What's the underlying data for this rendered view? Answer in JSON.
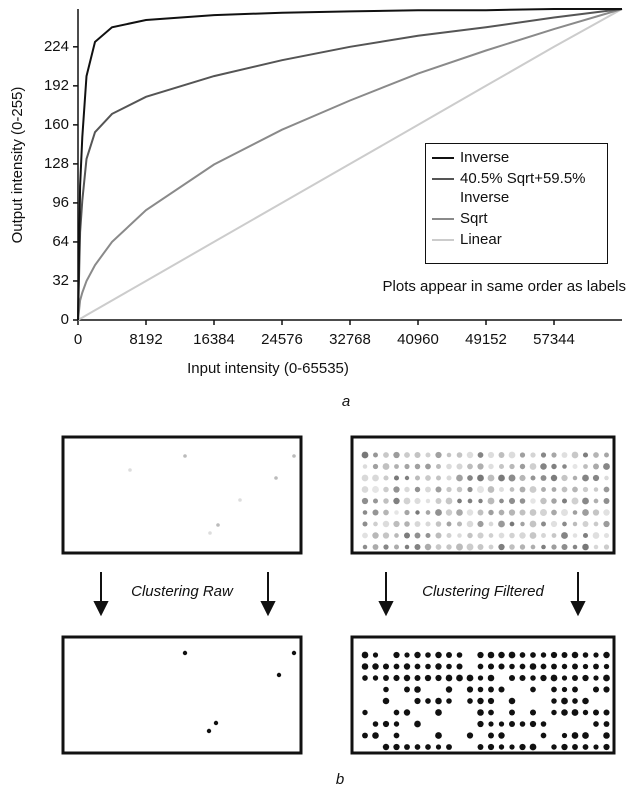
{
  "chart_data": {
    "type": "line",
    "x_label": "Input intensity (0-65535)",
    "y_label": "Output intensity (0-255)",
    "x": [
      0,
      256,
      512,
      1024,
      2048,
      4096,
      8192,
      16384,
      24576,
      32768,
      40960,
      49152,
      57344,
      65535
    ],
    "series": [
      {
        "name": "Inverse",
        "color": "#111111",
        "values": [
          0,
          110,
          150,
          200,
          228,
          240,
          246,
          250,
          252,
          253,
          254,
          254,
          255,
          255
        ]
      },
      {
        "name": "40.5% Sqrt+59.5% Inverse",
        "color": "#555555",
        "values": [
          0,
          72,
          98,
          132,
          154,
          169,
          183,
          200,
          213,
          224,
          233,
          240,
          248,
          255
        ]
      },
      {
        "name": "Sqrt",
        "color": "#8a8a8a",
        "values": [
          0,
          16,
          22.5,
          32,
          45,
          64,
          90,
          127.5,
          156,
          180,
          202,
          221,
          238.5,
          255
        ]
      },
      {
        "name": "Linear",
        "color": "#cccccc",
        "values": [
          0,
          1,
          2,
          4,
          8,
          16,
          32,
          64,
          96,
          128,
          160,
          192,
          224,
          255
        ]
      }
    ],
    "xlim": [
      0,
      65535
    ],
    "ylim": [
      0,
      255
    ],
    "xticks": [
      0,
      8192,
      16384,
      24576,
      32768,
      40960,
      49152,
      57344
    ],
    "yticks": [
      0,
      32,
      64,
      96,
      128,
      160,
      192,
      224
    ],
    "annotation": "Plots appear in same order as labels"
  },
  "panel_labels": [
    "a",
    "b"
  ],
  "panel_b": {
    "labels": [
      "Clustering Raw",
      "Clustering Filtered"
    ]
  }
}
